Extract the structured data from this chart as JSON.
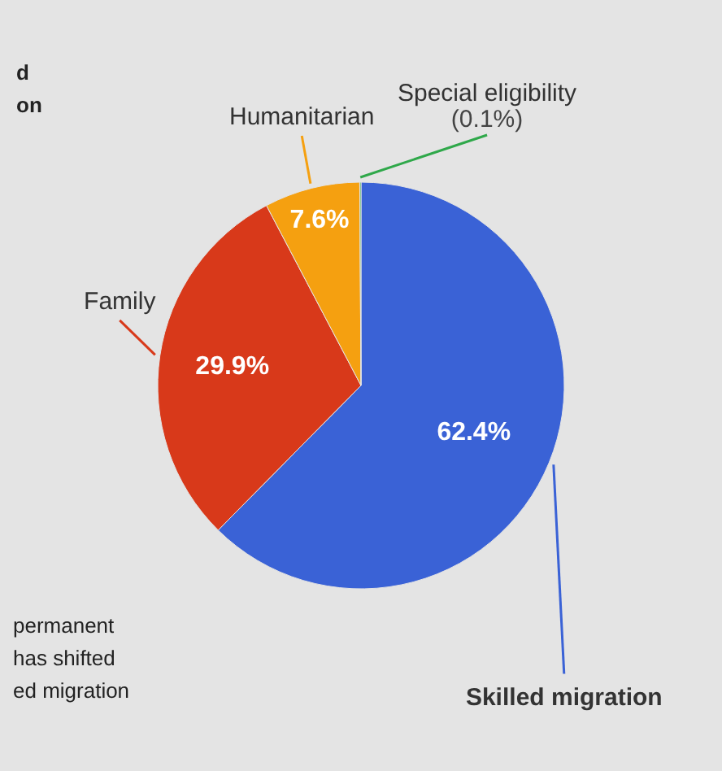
{
  "chart_data": {
    "type": "pie",
    "categories": [
      "Skilled migration",
      "Family",
      "Humanitarian",
      "Special eligibility"
    ],
    "values": [
      62.4,
      29.9,
      7.6,
      0.1
    ],
    "colors": [
      "#3a62d6",
      "#d8391a",
      "#f5a010",
      "#2fa84a"
    ],
    "value_labels": [
      "62.4%",
      "29.9%",
      "7.6%",
      "(0.1%)"
    ],
    "annotations": [
      "d\non",
      "permanent\nhas shifted\ned migration"
    ]
  }
}
